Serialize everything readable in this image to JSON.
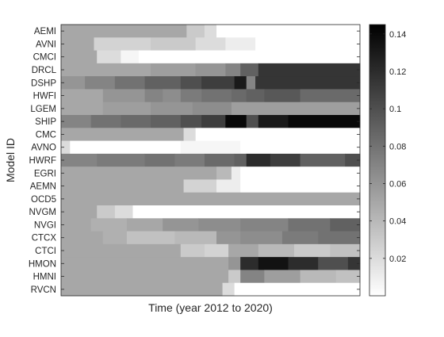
{
  "chart_data": {
    "type": "heatmap",
    "title": "",
    "xlabel": "Time (year 2012 to 2020)",
    "ylabel": "Model ID",
    "colorbar": {
      "min": 0,
      "max": 0.145,
      "ticks": [
        0.02,
        0.04,
        0.06,
        0.08,
        0.1,
        0.12,
        0.14
      ],
      "tick_labels": [
        "0.02",
        "0.04",
        "0.06",
        "0.08",
        "0.1",
        "0.12",
        "0.14"
      ],
      "colormap": "gray-reversed",
      "low_color": "#ffffff",
      "high_color": "#000000"
    },
    "x_tick_labels": [],
    "missing_value_level": 0.05,
    "rows": [
      {
        "id": "AEMI",
        "segments": [
          [
            0.0,
            0.42,
            0.05
          ],
          [
            0.42,
            0.48,
            0.03
          ],
          [
            0.48,
            0.52,
            0.02
          ],
          [
            0.52,
            1.0,
            0.0
          ]
        ]
      },
      {
        "id": "AVNI",
        "segments": [
          [
            0.0,
            0.11,
            0.05
          ],
          [
            0.11,
            0.3,
            0.025
          ],
          [
            0.3,
            0.45,
            0.03
          ],
          [
            0.45,
            0.55,
            0.02
          ],
          [
            0.55,
            0.65,
            0.01
          ],
          [
            0.65,
            1.0,
            0.0
          ]
        ]
      },
      {
        "id": "CMCI",
        "segments": [
          [
            0.0,
            0.12,
            0.05
          ],
          [
            0.12,
            0.2,
            0.02
          ],
          [
            0.2,
            0.26,
            0.005
          ],
          [
            0.26,
            1.0,
            0.0
          ]
        ]
      },
      {
        "id": "DRCL",
        "segments": [
          [
            0.0,
            0.3,
            0.05
          ],
          [
            0.3,
            0.45,
            0.055
          ],
          [
            0.45,
            0.55,
            0.06
          ],
          [
            0.55,
            0.6,
            0.07
          ],
          [
            0.6,
            0.66,
            0.09
          ],
          [
            0.66,
            1.0,
            0.115
          ]
        ]
      },
      {
        "id": "DSHP",
        "segments": [
          [
            0.0,
            0.08,
            0.06
          ],
          [
            0.08,
            0.18,
            0.07
          ],
          [
            0.18,
            0.28,
            0.08
          ],
          [
            0.28,
            0.4,
            0.09
          ],
          [
            0.4,
            0.47,
            0.1
          ],
          [
            0.47,
            0.58,
            0.11
          ],
          [
            0.58,
            0.62,
            0.13
          ],
          [
            0.62,
            0.65,
            0.07
          ],
          [
            0.65,
            1.0,
            0.115
          ]
        ]
      },
      {
        "id": "HWFI",
        "segments": [
          [
            0.0,
            0.14,
            0.05
          ],
          [
            0.14,
            0.28,
            0.06
          ],
          [
            0.28,
            0.34,
            0.07
          ],
          [
            0.34,
            0.4,
            0.065
          ],
          [
            0.4,
            0.47,
            0.075
          ],
          [
            0.47,
            0.57,
            0.08
          ],
          [
            0.57,
            0.62,
            0.085
          ],
          [
            0.62,
            0.68,
            0.09
          ],
          [
            0.68,
            0.8,
            0.095
          ],
          [
            0.8,
            1.0,
            0.085
          ]
        ]
      },
      {
        "id": "LGEM",
        "segments": [
          [
            0.0,
            0.14,
            0.05
          ],
          [
            0.14,
            0.3,
            0.055
          ],
          [
            0.3,
            0.44,
            0.06
          ],
          [
            0.44,
            0.57,
            0.065
          ],
          [
            0.57,
            1.0,
            0.055
          ]
        ]
      },
      {
        "id": "SHIP",
        "segments": [
          [
            0.0,
            0.1,
            0.07
          ],
          [
            0.1,
            0.2,
            0.08
          ],
          [
            0.2,
            0.3,
            0.085
          ],
          [
            0.3,
            0.4,
            0.09
          ],
          [
            0.4,
            0.47,
            0.1
          ],
          [
            0.47,
            0.55,
            0.11
          ],
          [
            0.55,
            0.62,
            0.14
          ],
          [
            0.62,
            0.66,
            0.1
          ],
          [
            0.66,
            0.76,
            0.13
          ],
          [
            0.76,
            1.0,
            0.14
          ]
        ]
      },
      {
        "id": "CMC",
        "segments": [
          [
            0.0,
            0.41,
            0.05
          ],
          [
            0.41,
            0.45,
            0.02
          ],
          [
            0.45,
            1.0,
            0.0
          ]
        ]
      },
      {
        "id": "AVNO",
        "segments": [
          [
            0.0,
            0.03,
            0.02
          ],
          [
            0.03,
            0.4,
            0.0
          ],
          [
            0.4,
            0.6,
            0.005
          ],
          [
            0.6,
            1.0,
            0.0
          ]
        ]
      },
      {
        "id": "HWRF",
        "segments": [
          [
            0.0,
            0.12,
            0.07
          ],
          [
            0.12,
            0.28,
            0.075
          ],
          [
            0.28,
            0.38,
            0.08
          ],
          [
            0.38,
            0.48,
            0.075
          ],
          [
            0.48,
            0.58,
            0.085
          ],
          [
            0.58,
            0.62,
            0.09
          ],
          [
            0.62,
            0.7,
            0.12
          ],
          [
            0.7,
            0.8,
            0.11
          ],
          [
            0.8,
            0.95,
            0.09
          ],
          [
            0.95,
            1.0,
            0.1
          ]
        ]
      },
      {
        "id": "EGRI",
        "segments": [
          [
            0.0,
            0.52,
            0.05
          ],
          [
            0.52,
            0.57,
            0.04
          ],
          [
            0.57,
            0.6,
            0.01
          ],
          [
            0.6,
            1.0,
            0.0
          ]
        ]
      },
      {
        "id": "AEMN",
        "segments": [
          [
            0.0,
            0.41,
            0.05
          ],
          [
            0.41,
            0.52,
            0.025
          ],
          [
            0.52,
            0.6,
            0.01
          ],
          [
            0.6,
            1.0,
            0.0
          ]
        ]
      },
      {
        "id": "OCD5",
        "segments": [
          [
            0.0,
            1.0,
            0.05
          ]
        ]
      },
      {
        "id": "NVGM",
        "segments": [
          [
            0.0,
            0.12,
            0.05
          ],
          [
            0.12,
            0.18,
            0.03
          ],
          [
            0.18,
            0.24,
            0.02
          ],
          [
            0.24,
            1.0,
            0.0
          ]
        ]
      },
      {
        "id": "NVGI",
        "segments": [
          [
            0.0,
            0.1,
            0.05
          ],
          [
            0.1,
            0.22,
            0.045
          ],
          [
            0.22,
            0.34,
            0.05
          ],
          [
            0.34,
            0.46,
            0.06
          ],
          [
            0.46,
            0.6,
            0.065
          ],
          [
            0.6,
            0.76,
            0.07
          ],
          [
            0.76,
            0.9,
            0.08
          ],
          [
            0.9,
            1.0,
            0.09
          ]
        ]
      },
      {
        "id": "CTCX",
        "segments": [
          [
            0.0,
            0.14,
            0.05
          ],
          [
            0.14,
            0.22,
            0.045
          ],
          [
            0.22,
            0.38,
            0.035
          ],
          [
            0.38,
            0.52,
            0.04
          ],
          [
            0.52,
            0.6,
            0.06
          ],
          [
            0.6,
            0.74,
            0.065
          ],
          [
            0.74,
            0.86,
            0.075
          ],
          [
            0.86,
            1.0,
            0.08
          ]
        ]
      },
      {
        "id": "CTCI",
        "segments": [
          [
            0.0,
            0.4,
            0.05
          ],
          [
            0.4,
            0.48,
            0.03
          ],
          [
            0.48,
            0.56,
            0.025
          ],
          [
            0.56,
            0.66,
            0.05
          ],
          [
            0.66,
            0.78,
            0.04
          ],
          [
            0.78,
            0.9,
            0.03
          ],
          [
            0.9,
            1.0,
            0.035
          ]
        ]
      },
      {
        "id": "HMON",
        "segments": [
          [
            0.0,
            0.56,
            0.05
          ],
          [
            0.56,
            0.6,
            0.06
          ],
          [
            0.6,
            0.66,
            0.12
          ],
          [
            0.66,
            0.76,
            0.135
          ],
          [
            0.76,
            0.86,
            0.12
          ],
          [
            0.86,
            0.96,
            0.1
          ],
          [
            0.96,
            1.0,
            0.115
          ]
        ]
      },
      {
        "id": "HMNI",
        "segments": [
          [
            0.0,
            0.56,
            0.05
          ],
          [
            0.56,
            0.6,
            0.03
          ],
          [
            0.6,
            0.68,
            0.07
          ],
          [
            0.68,
            0.8,
            0.055
          ],
          [
            0.8,
            0.92,
            0.04
          ],
          [
            0.92,
            1.0,
            0.035
          ]
        ]
      },
      {
        "id": "RVCN",
        "segments": [
          [
            0.0,
            0.54,
            0.05
          ],
          [
            0.54,
            0.58,
            0.02
          ],
          [
            0.58,
            1.0,
            0.0
          ]
        ]
      }
    ]
  }
}
